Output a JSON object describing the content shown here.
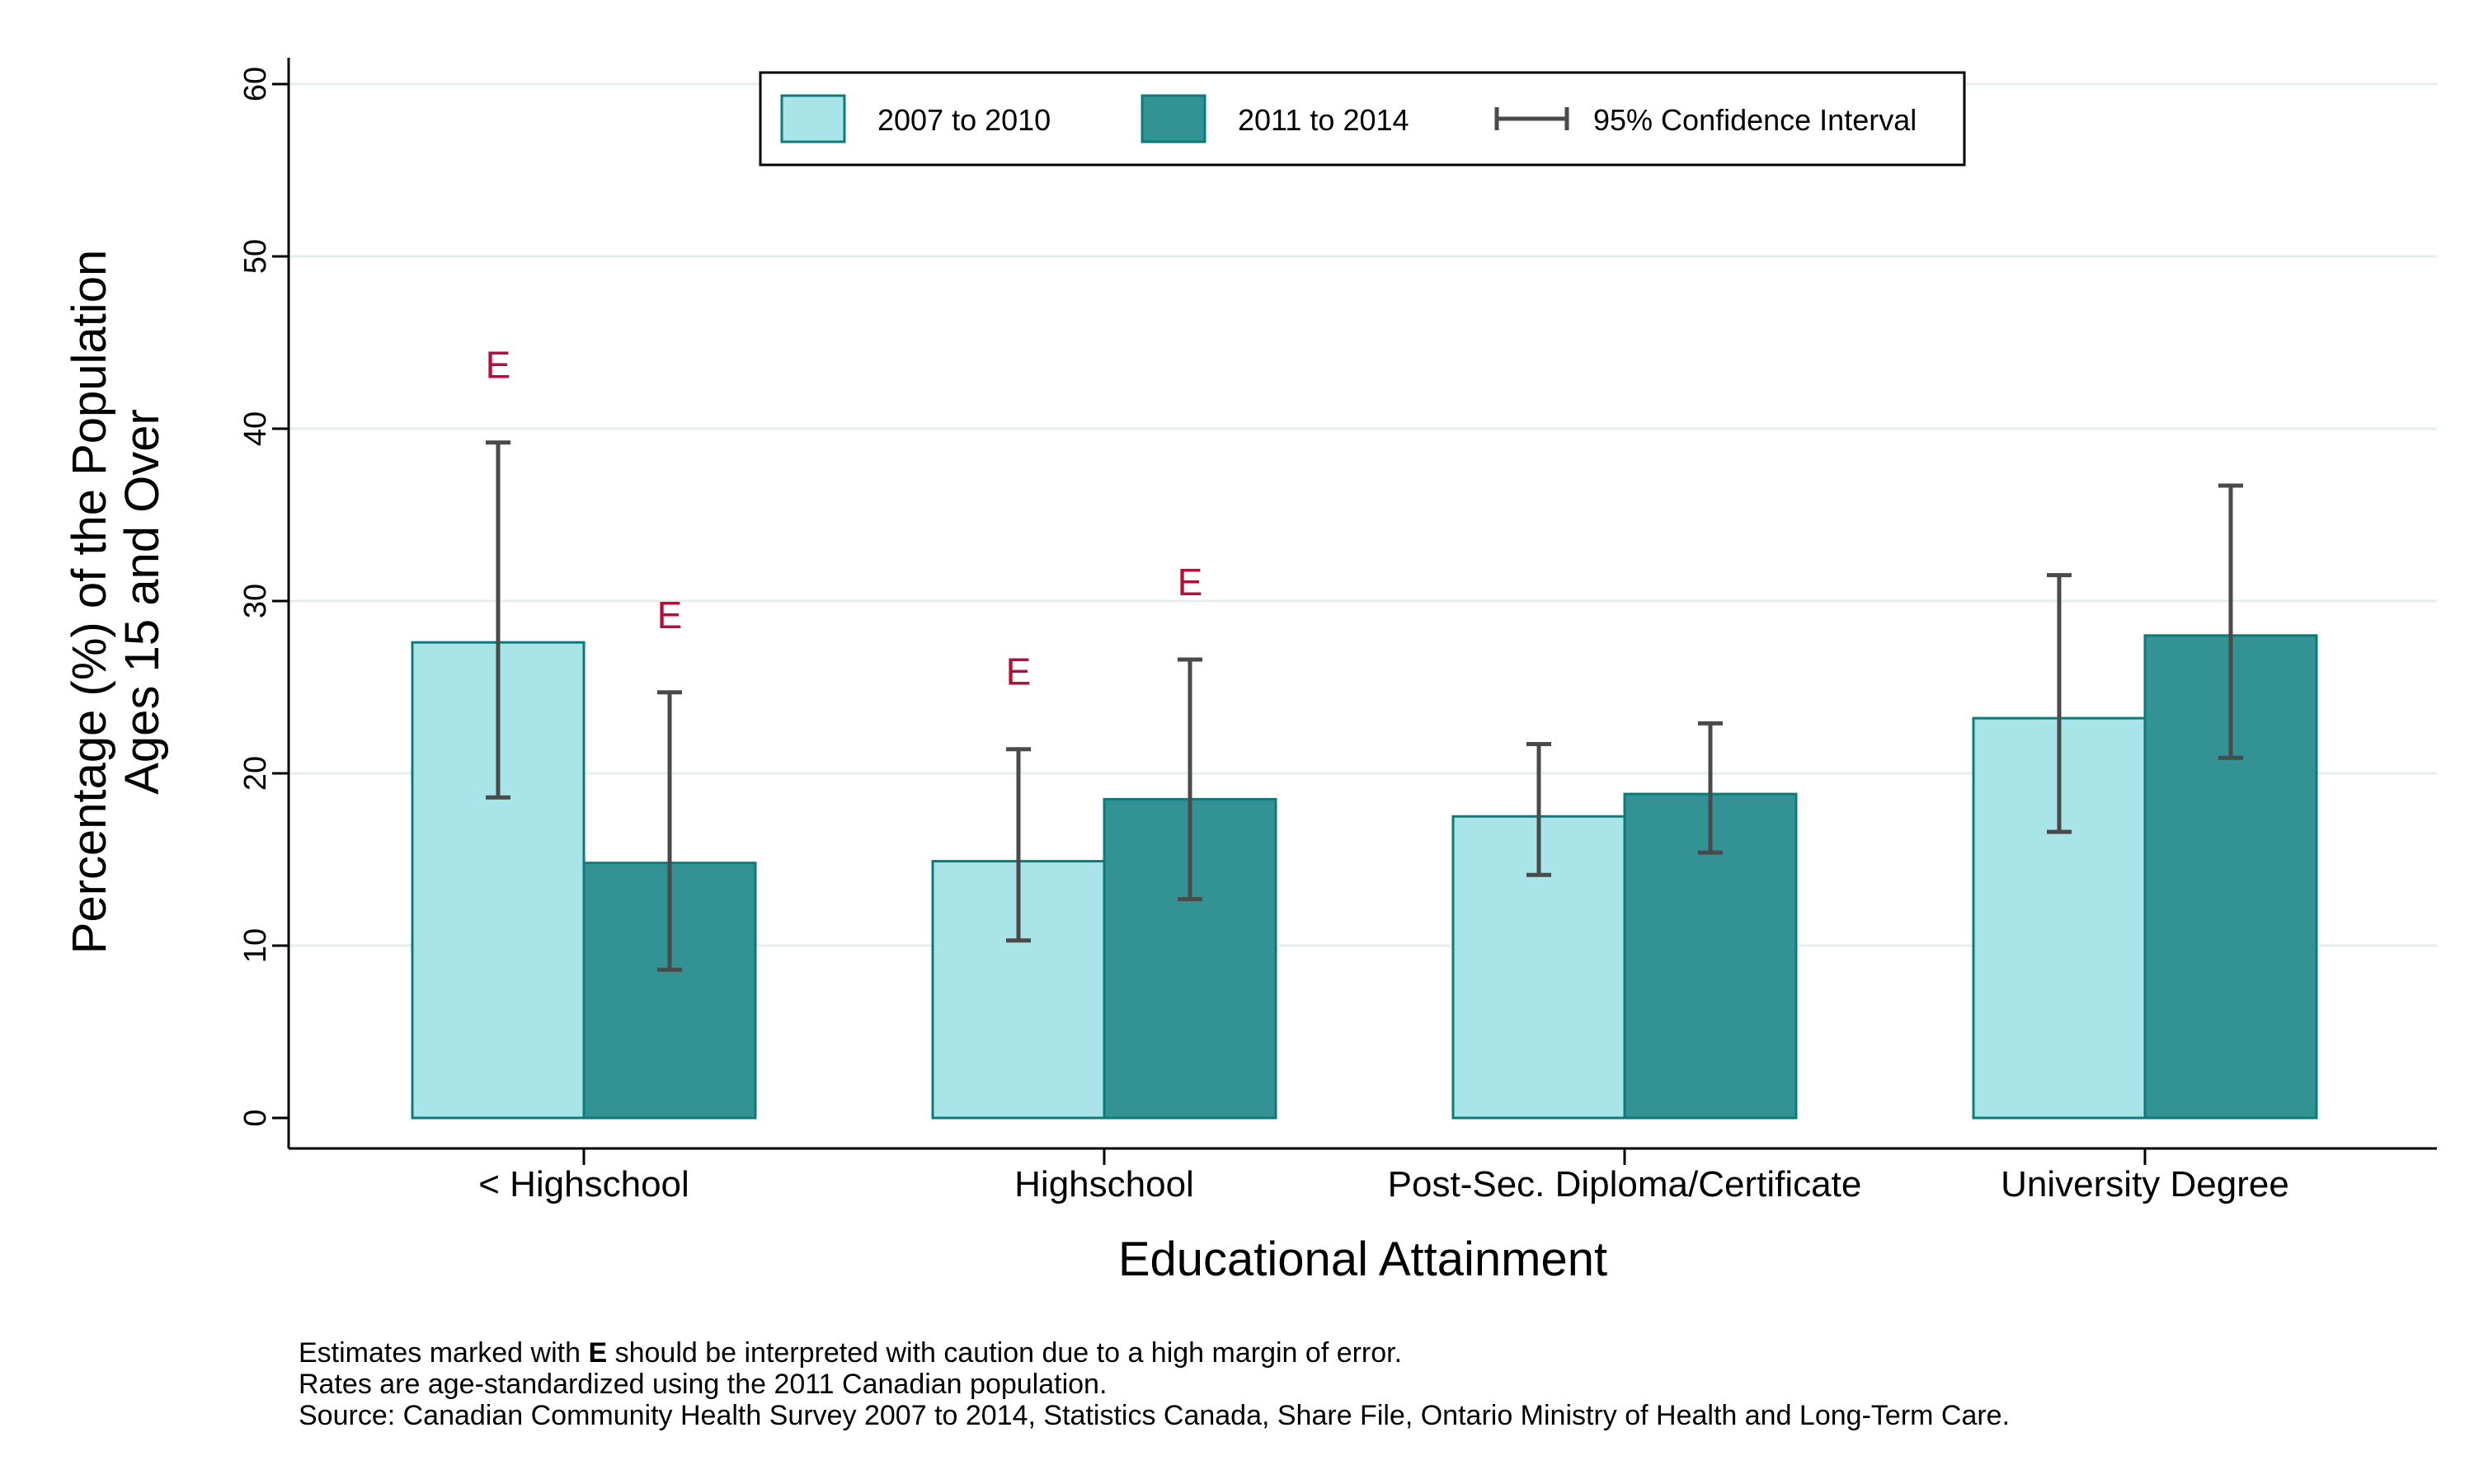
{
  "chart_data": {
    "type": "bar",
    "xlabel": "Educational Attainment",
    "ylabel_lines": [
      "Percentage (%) of the Population",
      "Ages 15 and Over"
    ],
    "categories": [
      "< Highschool",
      "Highschool",
      "Post-Sec. Diploma/Certificate",
      "University Degree"
    ],
    "ylim": [
      0,
      60
    ],
    "yticks": [
      0,
      10,
      20,
      30,
      40,
      50,
      60
    ],
    "grid": true,
    "legend_position": "top-center",
    "legend_ci_label": "95% Confidence Interval",
    "series": [
      {
        "name": "2007 to 2010",
        "color": "#a8e4e8",
        "values": [
          27.6,
          14.9,
          17.5,
          23.2
        ],
        "ci_low": [
          18.6,
          10.3,
          14.1,
          16.6
        ],
        "ci_high": [
          39.2,
          21.4,
          21.7,
          31.5
        ],
        "flags": [
          "E",
          "E",
          "",
          ""
        ]
      },
      {
        "name": "2011 to 2014",
        "color": "#339294",
        "values": [
          14.8,
          18.5,
          18.8,
          28.0
        ],
        "ci_low": [
          8.6,
          12.7,
          15.4,
          20.9
        ],
        "ci_high": [
          24.7,
          26.6,
          22.9,
          36.7
        ],
        "flags": [
          "E",
          "E",
          "",
          ""
        ]
      }
    ],
    "flag_color": "#b0103a",
    "ci_color": "#4a4a4a",
    "bar_outline_color": "#0d7a7c"
  },
  "notes": {
    "line1_prefix": "Estimates marked with ",
    "line1_flag": "E",
    "line1_suffix": " should be interpreted with caution due to a high margin of error.",
    "line2": "Rates are age-standardized using the 2011 Canadian population.",
    "line3": "Source: Canadian Community Health Survey 2007 to 2014, Statistics Canada, Share File, Ontario Ministry of Health and Long-Term Care."
  }
}
